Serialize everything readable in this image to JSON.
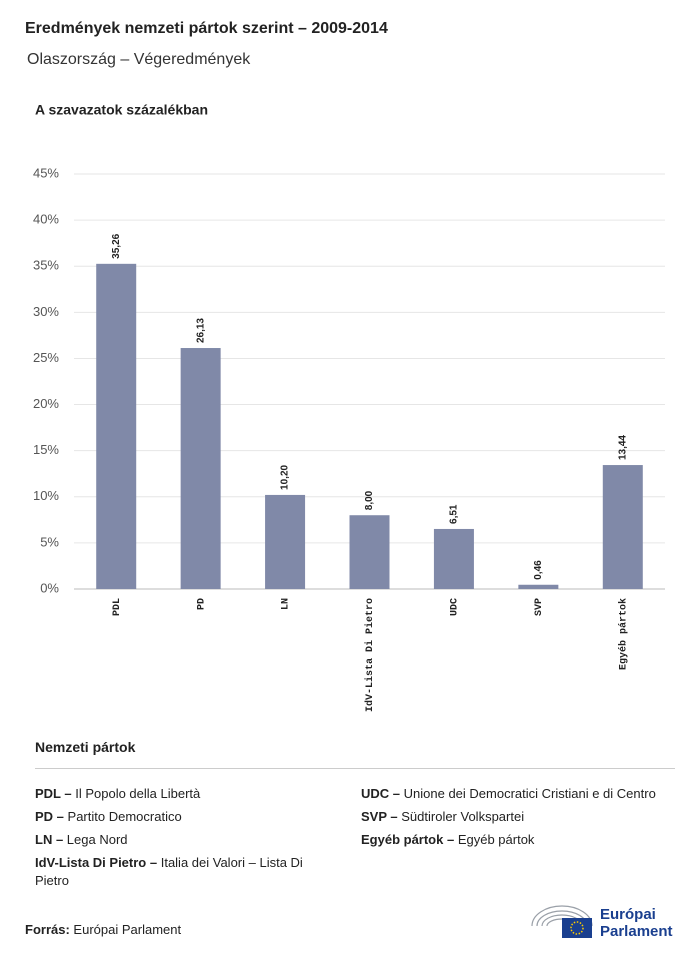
{
  "chart_data": {
    "type": "bar",
    "title": "Eredmények nemzeti pártok szerint – 2009-2014",
    "subtitle": "Olaszország – Végeredmények",
    "y_axis_title": "A szavazatok százalékban",
    "categories": [
      "PDL",
      "PD",
      "LN",
      "IdV-Lista Di Pietro",
      "UDC",
      "SVP",
      "Egyéb pártok"
    ],
    "values": [
      35.26,
      26.13,
      10.2,
      8.0,
      6.51,
      0.46,
      13.44
    ],
    "value_labels": [
      "35,26",
      "26,13",
      "10,20",
      "8,00",
      "6,51",
      "0,46",
      "13,44"
    ],
    "color": "#8089a8",
    "ylim": [
      0,
      45
    ],
    "yticks": [
      {
        "value": 0,
        "label": "0%"
      },
      {
        "value": 5,
        "label": "5%"
      },
      {
        "value": 10,
        "label": "10%"
      },
      {
        "value": 15,
        "label": "15%"
      },
      {
        "value": 20,
        "label": "20%"
      },
      {
        "value": 25,
        "label": "25%"
      },
      {
        "value": 30,
        "label": "30%"
      },
      {
        "value": 35,
        "label": "35%"
      },
      {
        "value": 40,
        "label": "40%"
      },
      {
        "value": 45,
        "label": "45%"
      }
    ],
    "grid": true
  },
  "legend": {
    "heading": "Nemzeti pártok",
    "items": [
      {
        "abbr": "PDL –",
        "name": "Il Popolo della Libertà"
      },
      {
        "abbr": "PD –",
        "name": "Partito Democratico"
      },
      {
        "abbr": "LN –",
        "name": "Lega Nord"
      },
      {
        "abbr": "IdV-Lista Di Pietro –",
        "name": "Italia dei Valori – Lista Di Pietro"
      },
      {
        "abbr": "UDC –",
        "name": "Unione dei Democratici Cristiani e di Centro"
      },
      {
        "abbr": "SVP –",
        "name": "Südtiroler Volkspartei"
      },
      {
        "abbr": "Egyéb pártok –",
        "name": "Egyéb pártok"
      }
    ]
  },
  "source": {
    "label": "Forrás:",
    "value": "Európai Parlament"
  },
  "logo": {
    "line1": "Európai",
    "line2": "Parlament"
  }
}
